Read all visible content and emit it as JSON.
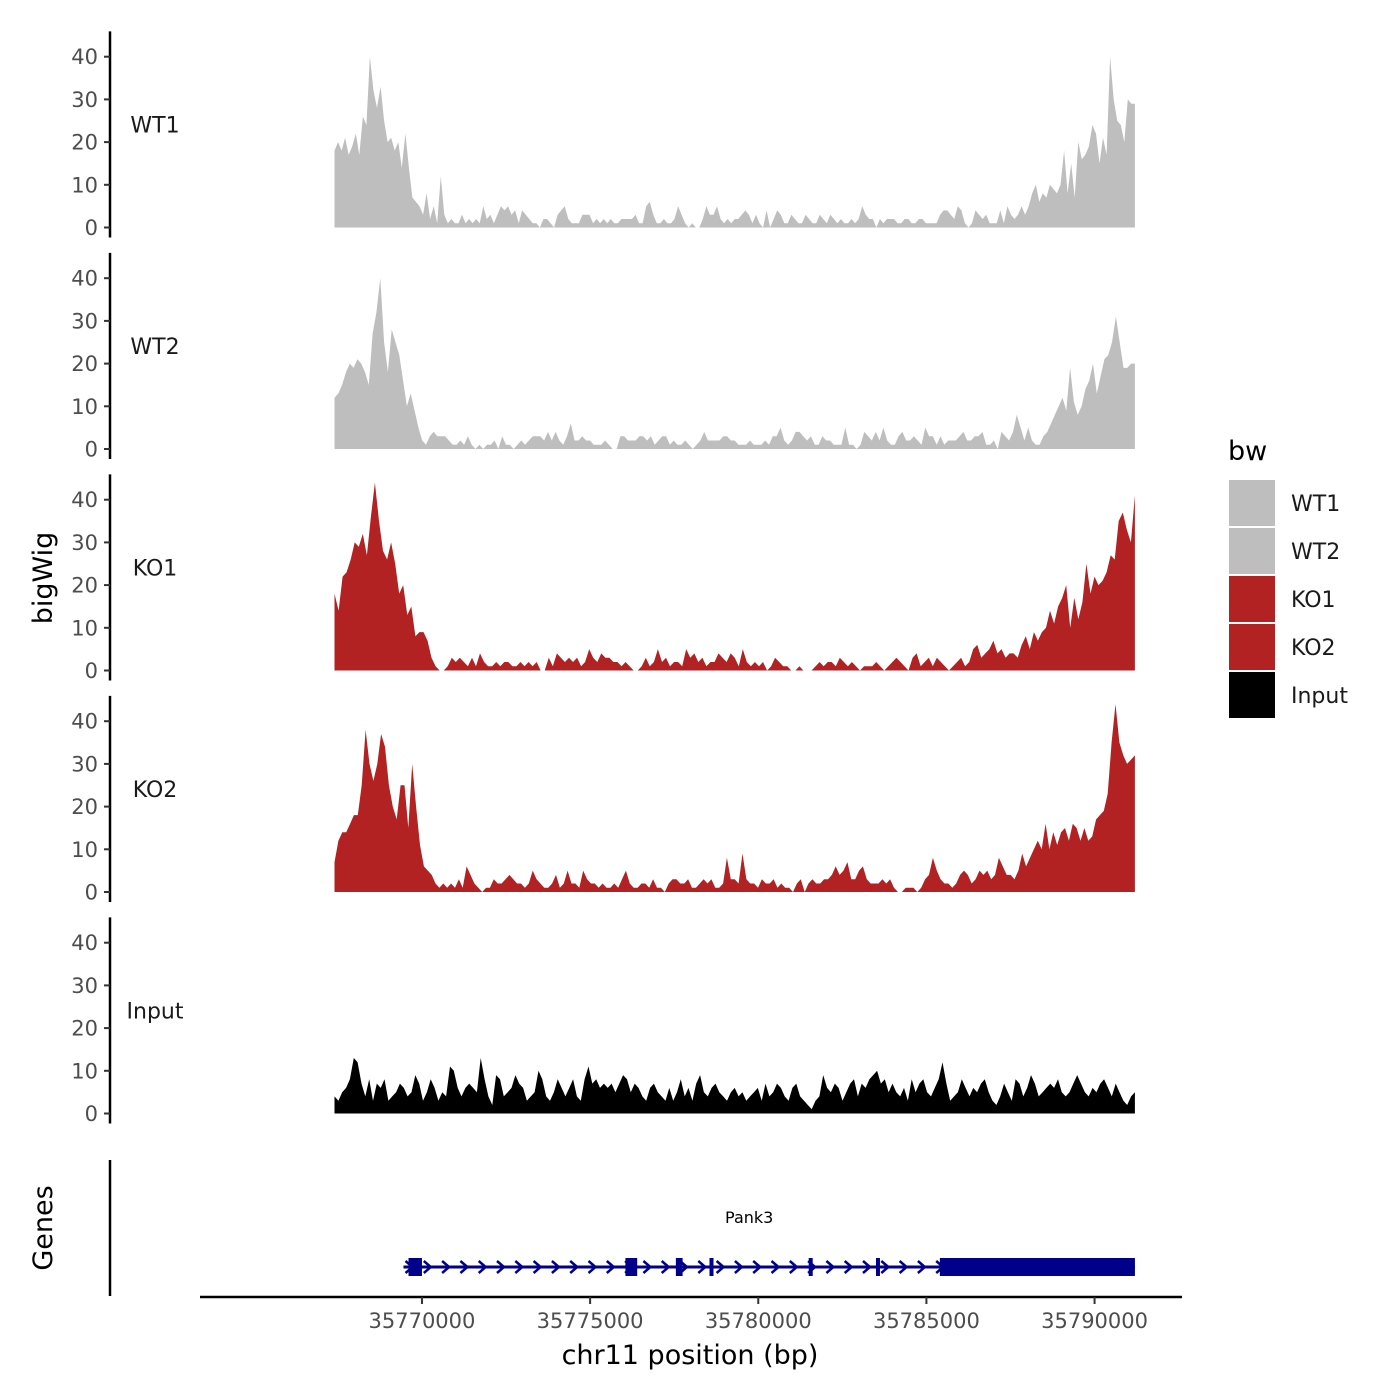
{
  "chart_data": {
    "type": "area",
    "title": "",
    "ylabel": "bigWig",
    "xlabel": "chr11 position (bp)",
    "gene_track_label": "Genes",
    "ylim": [
      0,
      45
    ],
    "yticks": [
      "0",
      "10",
      "20",
      "30",
      "40"
    ],
    "xlim": [
      35763400,
      35792600
    ],
    "region": [
      35767400,
      35791200
    ],
    "xticks": [
      {
        "value": 35770000,
        "label": "35770000"
      },
      {
        "value": 35775000,
        "label": "35775000"
      },
      {
        "value": 35780000,
        "label": "35780000"
      },
      {
        "value": 35785000,
        "label": "35785000"
      },
      {
        "value": 35790000,
        "label": "35790000"
      }
    ],
    "legend": {
      "title": "bw",
      "entries": [
        {
          "label": "WT1",
          "color": "#BEBEBE"
        },
        {
          "label": "WT2",
          "color": "#BEBEBE"
        },
        {
          "label": "KO1",
          "color": "#B22222"
        },
        {
          "label": "KO2",
          "color": "#B22222"
        },
        {
          "label": "Input",
          "color": "#000000"
        }
      ]
    },
    "series": [
      {
        "name": "WT1",
        "color": "#BEBEBE",
        "values": [
          18,
          20,
          18,
          21,
          17,
          19,
          22,
          17,
          26,
          24,
          40,
          32,
          28,
          33,
          25,
          20,
          21,
          18,
          20,
          14,
          22,
          14,
          7,
          6,
          5,
          3,
          8,
          2,
          5,
          1,
          12,
          3,
          1,
          2,
          1,
          1,
          3,
          1,
          2,
          1,
          2,
          1,
          5,
          2,
          3,
          1,
          3,
          5,
          4,
          5,
          3,
          4,
          1,
          4,
          3,
          2,
          1,
          1,
          0,
          2,
          2,
          1,
          0,
          3,
          4,
          5,
          2,
          1,
          1,
          1,
          3,
          3,
          3,
          1,
          2,
          1,
          2,
          1,
          2,
          1,
          1,
          2,
          2,
          2,
          2,
          3,
          1,
          1,
          5,
          6,
          3,
          1,
          1,
          2,
          1,
          1,
          2,
          5,
          3,
          1,
          0,
          1,
          0,
          0,
          2,
          5,
          3,
          3,
          5,
          2,
          1,
          2,
          1,
          2,
          2,
          3,
          4,
          3,
          1,
          3,
          1,
          0,
          4,
          0,
          2,
          4,
          3,
          1,
          1,
          3,
          2,
          1,
          1,
          3,
          2,
          1,
          1,
          3,
          2,
          1,
          3,
          2,
          1,
          2,
          1,
          1,
          2,
          1,
          2,
          5,
          3,
          2,
          2,
          0,
          2,
          1,
          2,
          2,
          2,
          1,
          1,
          2,
          2,
          1,
          1,
          2,
          2,
          1,
          1,
          1,
          1,
          3,
          4,
          4,
          3,
          2,
          5,
          4,
          1,
          0,
          1,
          4,
          3,
          2,
          3,
          1,
          1,
          1,
          4,
          1,
          5,
          3,
          2,
          3,
          5,
          3,
          5,
          8,
          10,
          6,
          8,
          7,
          10,
          9,
          8,
          10,
          18,
          8,
          15,
          7,
          20,
          16,
          17,
          19,
          24,
          22,
          15,
          21,
          17,
          40,
          30,
          25,
          24,
          20,
          30,
          29,
          29
        ]
      },
      {
        "name": "WT2",
        "color": "#BEBEBE",
        "values": [
          12,
          13,
          15,
          18,
          20,
          19,
          21,
          20,
          18,
          15,
          27,
          32,
          40,
          25,
          18,
          28,
          25,
          22,
          16,
          10,
          13,
          9,
          5,
          2,
          1,
          3,
          4,
          3,
          3,
          3,
          2,
          1,
          1,
          2,
          1,
          3,
          1,
          0,
          1,
          0,
          1,
          1,
          2,
          0,
          3,
          1,
          1,
          0,
          1,
          2,
          1,
          2,
          3,
          3,
          3,
          2,
          4,
          2,
          4,
          2,
          1,
          3,
          6,
          2,
          2,
          3,
          2,
          2,
          1,
          1,
          1,
          2,
          1,
          0,
          0,
          3,
          3,
          2,
          2,
          2,
          3,
          3,
          2,
          3,
          1,
          2,
          3,
          3,
          1,
          2,
          1,
          1,
          2,
          1,
          0,
          1,
          2,
          4,
          2,
          2,
          2,
          2,
          3,
          3,
          2,
          2,
          1,
          1,
          1,
          2,
          1,
          1,
          1,
          2,
          1,
          3,
          3,
          5,
          2,
          1,
          2,
          4,
          4,
          3,
          2,
          3,
          1,
          1,
          3,
          2,
          2,
          1,
          1,
          1,
          5,
          1,
          1,
          0,
          1,
          4,
          3,
          2,
          4,
          2,
          5,
          2,
          1,
          1,
          3,
          4,
          2,
          2,
          3,
          2,
          1,
          5,
          3,
          3,
          1,
          3,
          1,
          2,
          2,
          2,
          3,
          4,
          2,
          2,
          3,
          3,
          4,
          1,
          1,
          2,
          0,
          4,
          3,
          2,
          4,
          8,
          5,
          2,
          5,
          2,
          1,
          1,
          3,
          4,
          6,
          8,
          10,
          12,
          9,
          19,
          11,
          8,
          10,
          14,
          16,
          20,
          13,
          17,
          21,
          22,
          25,
          31,
          25,
          19,
          19,
          20,
          20
        ]
      },
      {
        "name": "KO1",
        "color": "#B22222",
        "values": [
          18,
          14,
          22,
          23,
          26,
          30,
          29,
          32,
          27,
          36,
          44,
          35,
          28,
          26,
          30,
          25,
          18,
          20,
          13,
          15,
          8,
          9,
          9,
          7,
          3,
          1,
          0,
          0,
          1,
          3,
          2,
          3,
          2,
          1,
          3,
          1,
          4,
          2,
          1,
          1,
          2,
          1,
          2,
          2,
          1,
          1,
          2,
          1,
          2,
          1,
          2,
          0,
          0,
          3,
          1,
          4,
          3,
          2,
          3,
          2,
          3,
          1,
          2,
          5,
          3,
          2,
          4,
          3,
          3,
          2,
          2,
          1,
          2,
          1,
          0,
          0,
          1,
          3,
          1,
          2,
          5,
          2,
          3,
          1,
          2,
          2,
          1,
          5,
          3,
          4,
          2,
          3,
          1,
          2,
          2,
          4,
          3,
          2,
          4,
          3,
          1,
          5,
          2,
          1,
          2,
          1,
          2,
          0,
          1,
          3,
          2,
          1,
          1,
          0,
          0,
          1,
          0,
          0,
          0,
          1,
          2,
          1,
          2,
          2,
          1,
          3,
          2,
          1,
          2,
          1,
          0,
          1,
          1,
          1,
          2,
          1,
          0,
          1,
          2,
          3,
          2,
          1,
          0,
          3,
          4,
          1,
          2,
          3,
          1,
          3,
          2,
          1,
          0,
          1,
          2,
          3,
          1,
          2,
          5,
          6,
          3,
          4,
          5,
          7,
          4,
          5,
          3,
          4,
          4,
          3,
          6,
          8,
          5,
          9,
          7,
          9,
          10,
          14,
          11,
          15,
          17,
          20,
          10,
          17,
          12,
          16,
          25,
          18,
          22,
          20,
          21,
          23,
          27,
          26,
          35,
          37,
          33,
          30,
          41
        ]
      },
      {
        "name": "KO2",
        "color": "#B22222",
        "values": [
          7,
          12,
          14,
          14,
          16,
          18,
          18,
          25,
          38,
          30,
          26,
          30,
          37,
          34,
          25,
          20,
          17,
          25,
          25,
          15,
          30,
          20,
          11,
          6,
          5,
          4,
          2,
          1,
          2,
          1,
          2,
          1,
          3,
          1,
          6,
          4,
          2,
          1,
          0,
          1,
          1,
          3,
          2,
          2,
          3,
          4,
          3,
          2,
          2,
          1,
          2,
          5,
          3,
          2,
          1,
          1,
          2,
          4,
          1,
          2,
          5,
          2,
          2,
          1,
          5,
          3,
          2,
          2,
          1,
          2,
          1,
          1,
          2,
          1,
          3,
          5,
          2,
          1,
          1,
          2,
          2,
          1,
          3,
          1,
          1,
          0,
          2,
          3,
          3,
          2,
          2,
          3,
          1,
          1,
          2,
          3,
          2,
          3,
          1,
          1,
          2,
          8,
          3,
          3,
          2,
          9,
          3,
          2,
          2,
          1,
          3,
          2,
          2,
          3,
          1,
          2,
          1,
          1,
          0,
          2,
          3,
          0,
          2,
          3,
          2,
          2,
          3,
          3,
          4,
          6,
          4,
          5,
          7,
          3,
          3,
          5,
          6,
          3,
          2,
          2,
          2,
          3,
          2,
          3,
          1,
          0,
          0,
          1,
          1,
          1,
          0,
          1,
          3,
          4,
          8,
          5,
          3,
          2,
          2,
          1,
          2,
          4,
          5,
          4,
          2,
          3,
          5,
          4,
          5,
          3,
          4,
          8,
          6,
          4,
          4,
          3,
          5,
          9,
          6,
          8,
          10,
          12,
          10,
          16,
          10,
          14,
          11,
          14,
          15,
          12,
          16,
          15,
          12,
          15,
          12,
          13,
          17,
          18,
          19,
          23,
          35,
          44,
          35,
          32,
          30,
          31,
          32
        ]
      },
      {
        "name": "Input",
        "color": "#000000",
        "values": [
          4,
          3,
          5,
          6,
          8,
          13,
          12,
          7,
          4,
          8,
          3,
          7,
          6,
          8,
          3,
          4,
          5,
          7,
          6,
          4,
          5,
          9,
          7,
          3,
          5,
          8,
          6,
          3,
          5,
          4,
          11,
          10,
          6,
          4,
          6,
          7,
          6,
          5,
          13,
          8,
          4,
          2,
          9,
          8,
          4,
          5,
          6,
          9,
          7,
          6,
          3,
          4,
          5,
          10,
          8,
          4,
          3,
          5,
          8,
          6,
          4,
          6,
          8,
          4,
          3,
          8,
          11,
          7,
          8,
          6,
          7,
          6,
          7,
          5,
          7,
          9,
          8,
          5,
          7,
          6,
          4,
          3,
          6,
          7,
          5,
          4,
          3,
          6,
          3,
          5,
          8,
          4,
          6,
          3,
          7,
          9,
          5,
          4,
          6,
          7,
          5,
          4,
          3,
          5,
          6,
          4,
          5,
          3,
          4,
          5,
          6,
          3,
          7,
          4,
          5,
          7,
          6,
          4,
          3,
          6,
          7,
          4,
          3,
          2,
          1,
          3,
          4,
          9,
          6,
          5,
          7,
          6,
          3,
          5,
          7,
          8,
          4,
          7,
          6,
          8,
          9,
          10,
          7,
          8,
          5,
          7,
          5,
          4,
          6,
          3,
          8,
          5,
          7,
          8,
          5,
          4,
          6,
          8,
          12,
          7,
          3,
          4,
          5,
          8,
          6,
          4,
          6,
          5,
          7,
          8,
          5,
          3,
          2,
          4,
          7,
          5,
          3,
          8,
          7,
          4,
          6,
          9,
          7,
          4,
          5,
          6,
          7,
          6,
          8,
          5,
          4,
          5,
          7,
          9,
          7,
          5,
          4,
          6,
          5,
          7,
          8,
          6,
          4,
          7,
          5,
          3,
          2,
          4,
          5
        ]
      }
    ],
    "gene": {
      "name": "Pank3",
      "start": 35769450,
      "end": 35791200,
      "strand": "+",
      "exons": [
        [
          35769600,
          35770000
        ],
        [
          35776050,
          35776400
        ],
        [
          35777550,
          35777750
        ],
        [
          35778550,
          35778650
        ],
        [
          35781500,
          35781600
        ],
        [
          35783500,
          35783600
        ],
        [
          35785400,
          35791200
        ]
      ]
    }
  }
}
